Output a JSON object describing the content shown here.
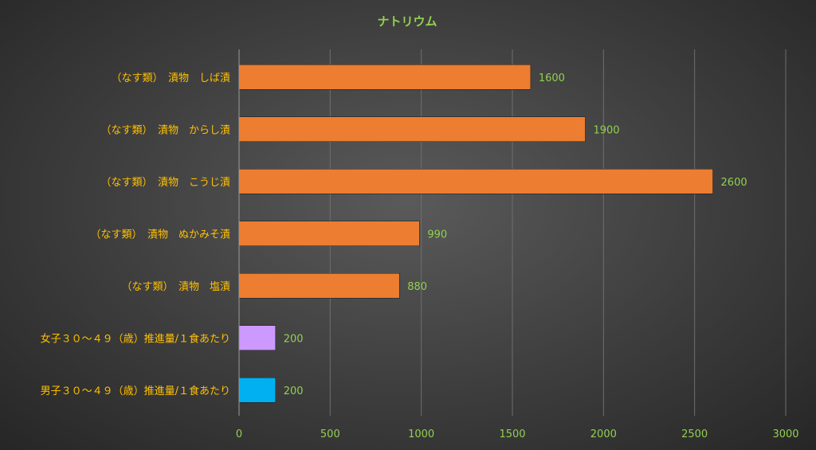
{
  "chart_data": {
    "type": "bar",
    "orientation": "horizontal",
    "title": "ナトリウム",
    "xlabel": "",
    "ylabel": "",
    "xlim": [
      0,
      3000
    ],
    "ticks": [
      0,
      500,
      1000,
      1500,
      2000,
      2500,
      3000
    ],
    "grid": true,
    "categories": [
      "（なす類）　漬物　しば漬",
      "（なす類）　漬物　からし漬",
      "（なす類）　漬物　こうじ漬",
      "（なす類）　漬物　ぬかみそ漬",
      "（なす類）　漬物　塩漬",
      "女子３０～４９（歳）推進量/１食あたり",
      "男子３０～４９（歳）推進量/１食あたり"
    ],
    "values": [
      1600,
      1900,
      2600,
      990,
      880,
      200,
      200
    ],
    "bar_colors": [
      "#ed7d31",
      "#ed7d31",
      "#ed7d31",
      "#ed7d31",
      "#ed7d31",
      "#cc99ff",
      "#00b0f0"
    ]
  }
}
